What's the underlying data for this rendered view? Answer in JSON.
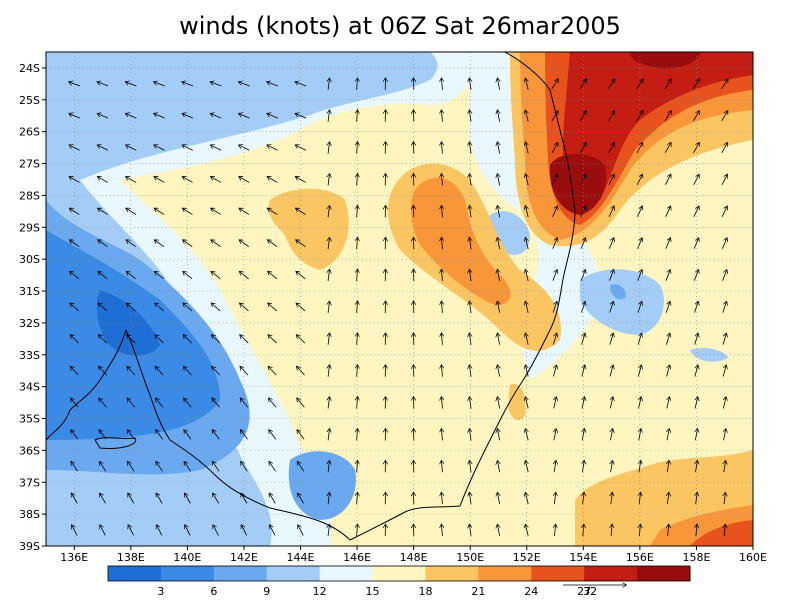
{
  "title": "winds (knots) at 06Z Sat 26mar2005",
  "lat_labels": [
    "24S",
    "25S",
    "26S",
    "27S",
    "28S",
    "29S",
    "30S",
    "31S",
    "32S",
    "33S",
    "34S",
    "35S",
    "36S",
    "37S",
    "38S",
    "39S"
  ],
  "lon_labels": [
    "136E",
    "138E",
    "140E",
    "142E",
    "144E",
    "146E",
    "148E",
    "150E",
    "152E",
    "154E",
    "156E",
    "158E",
    "160E"
  ],
  "lon_values": [
    136,
    138,
    140,
    142,
    144,
    146,
    148,
    150,
    152,
    154,
    156,
    158,
    160
  ],
  "lat_values": [
    -24,
    -25,
    -26,
    -27,
    -28,
    -29,
    -30,
    -31,
    -32,
    -33,
    -34,
    -35,
    -36,
    -37,
    -38,
    -39
  ],
  "domain": {
    "lon": [
      135,
      160
    ],
    "lat": [
      -39,
      -23.5
    ]
  },
  "colorbar": {
    "ticks": [
      "3",
      "6",
      "9",
      "12",
      "15",
      "18",
      "21",
      "24",
      "27"
    ],
    "extra_label": "32",
    "colors": [
      "#1f6ed6",
      "#3a8ae6",
      "#6aa9f0",
      "#a3cdf7",
      "#e9f7ff",
      "#fff5c0",
      "#fbc562",
      "#f9963a",
      "#e8531d",
      "#c41e14",
      "#9b0c0c"
    ]
  },
  "land_color": "#000000",
  "grid": true,
  "wind_field": "vector arrows (scale ~10 m/s)"
}
